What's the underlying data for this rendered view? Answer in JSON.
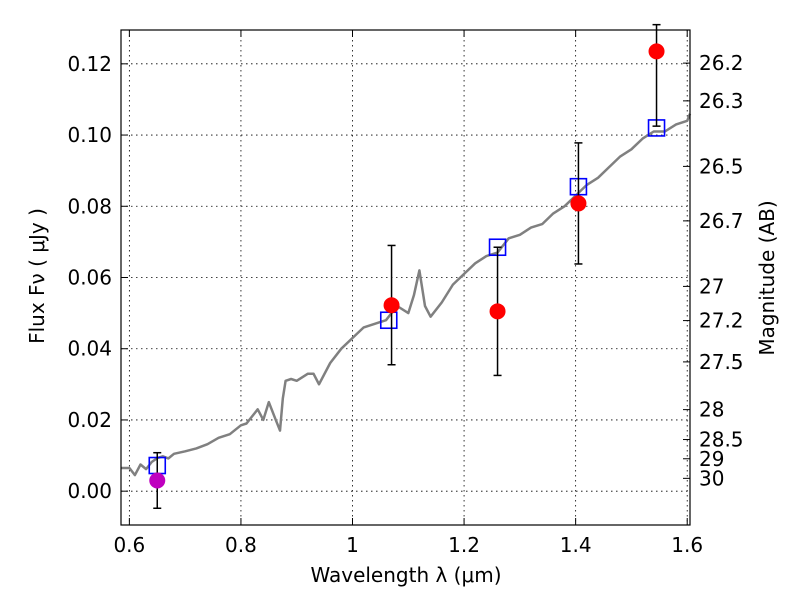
{
  "chart_data": {
    "type": "scatter",
    "xlabel": "Wavelength  λ (μm)",
    "ylabel": "Flux  Fν  ( μJy )",
    "y2label": "Magnitude (AB)",
    "xlim": [
      0.585,
      1.605
    ],
    "ylim": [
      -0.0095,
      0.1295
    ],
    "grid": true,
    "x_ticks": [
      0.6,
      0.8,
      1.0,
      1.2,
      1.4,
      1.6
    ],
    "x_tick_labels": [
      "0.6",
      "0.8",
      "1",
      "1.2",
      "1.4",
      "1.6"
    ],
    "y_ticks": [
      0.0,
      0.02,
      0.04,
      0.06,
      0.08,
      0.1,
      0.12
    ],
    "y_tick_labels": [
      "0.00",
      "0.02",
      "0.04",
      "0.06",
      "0.08",
      "0.10",
      "0.12"
    ],
    "mag_ticks": [
      {
        "label": "26.2",
        "flux": 0.1202
      },
      {
        "label": "26.3",
        "flux": 0.1096
      },
      {
        "label": "26.5",
        "flux": 0.0912
      },
      {
        "label": "26.7",
        "flux": 0.0759
      },
      {
        "label": "27",
        "flux": 0.0575
      },
      {
        "label": "27.2",
        "flux": 0.0479
      },
      {
        "label": "27.5",
        "flux": 0.0363
      },
      {
        "label": "28",
        "flux": 0.0229
      },
      {
        "label": "28.5",
        "flux": 0.0145
      },
      {
        "label": "29",
        "flux": 0.0091
      },
      {
        "label": "30",
        "flux": 0.0036
      }
    ],
    "series": [
      {
        "kind": "model-spectrum",
        "color": "#808080",
        "x": [
          0.585,
          0.6,
          0.61,
          0.62,
          0.63,
          0.64,
          0.65,
          0.66,
          0.67,
          0.68,
          0.7,
          0.72,
          0.74,
          0.76,
          0.78,
          0.8,
          0.81,
          0.82,
          0.83,
          0.84,
          0.85,
          0.86,
          0.87,
          0.875,
          0.88,
          0.89,
          0.9,
          0.92,
          0.93,
          0.94,
          0.96,
          0.98,
          1.0,
          1.02,
          1.04,
          1.06,
          1.08,
          1.1,
          1.11,
          1.12,
          1.13,
          1.14,
          1.16,
          1.18,
          1.2,
          1.22,
          1.24,
          1.26,
          1.28,
          1.3,
          1.32,
          1.34,
          1.36,
          1.38,
          1.4,
          1.42,
          1.44,
          1.46,
          1.48,
          1.5,
          1.52,
          1.54,
          1.56,
          1.58,
          1.6,
          1.605
        ],
        "y": [
          0.0065,
          0.0065,
          0.0045,
          0.0075,
          0.0062,
          0.0082,
          0.0093,
          0.0098,
          0.0092,
          0.0105,
          0.0112,
          0.012,
          0.0132,
          0.015,
          0.016,
          0.0185,
          0.019,
          0.021,
          0.023,
          0.02,
          0.025,
          0.021,
          0.017,
          0.026,
          0.031,
          0.0315,
          0.031,
          0.033,
          0.033,
          0.03,
          0.036,
          0.04,
          0.043,
          0.046,
          0.047,
          0.048,
          0.052,
          0.05,
          0.055,
          0.062,
          0.052,
          0.049,
          0.053,
          0.058,
          0.061,
          0.064,
          0.066,
          0.067,
          0.071,
          0.072,
          0.074,
          0.075,
          0.078,
          0.08,
          0.083,
          0.086,
          0.088,
          0.091,
          0.094,
          0.096,
          0.099,
          0.101,
          0.101,
          0.103,
          0.104,
          0.106
        ]
      },
      {
        "kind": "model-photometry",
        "marker": "open-square",
        "color": "#0000ff",
        "x": [
          0.65,
          1.065,
          1.26,
          1.405,
          1.545
        ],
        "y": [
          0.0072,
          0.048,
          0.0685,
          0.0855,
          0.102
        ]
      },
      {
        "kind": "observed",
        "marker": "filled-circle",
        "color": "#ff0000",
        "x": [
          1.07,
          1.26,
          1.405,
          1.545
        ],
        "y": [
          0.0522,
          0.0505,
          0.0808,
          0.1235
        ],
        "yerr_low": [
          0.0355,
          0.0325,
          0.0638,
          0.1025
        ],
        "yerr_high": [
          0.069,
          0.0685,
          0.0978,
          0.131
        ]
      },
      {
        "kind": "observed-upper",
        "marker": "filled-circle",
        "color": "#bf00bf",
        "x": [
          0.65
        ],
        "y": [
          0.003
        ],
        "yerr_low": [
          -0.0048
        ],
        "yerr_high": [
          0.0108
        ]
      }
    ]
  }
}
